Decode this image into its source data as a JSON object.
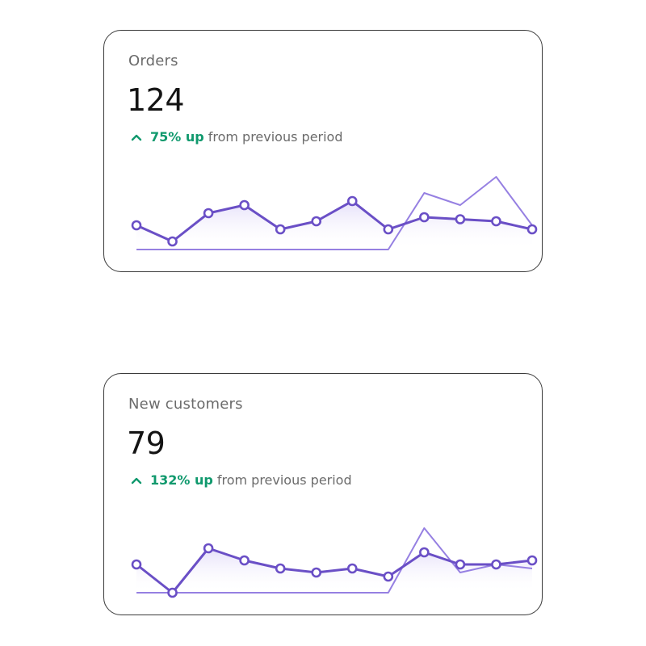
{
  "cards": [
    {
      "title": "Orders",
      "value": "124",
      "change_pct": "75% up",
      "change_text": "from previous period"
    },
    {
      "title": "New customers",
      "value": "79",
      "change_pct": "132% up",
      "change_text": "from previous period"
    }
  ],
  "colors": {
    "current_series": "#6a4fc6",
    "previous_series": "#9680e2",
    "positive": "#10996d"
  },
  "chart_data": [
    {
      "type": "line",
      "x": [
        1,
        2,
        3,
        4,
        5,
        6,
        7,
        8,
        9,
        10,
        11,
        12
      ],
      "series": [
        {
          "values": [
            6,
            2,
            9,
            11,
            5,
            7,
            12,
            5,
            8,
            7.5,
            7,
            5
          ]
        },
        {
          "values": [
            0,
            0,
            0,
            0,
            0,
            0,
            0,
            0,
            14,
            11,
            18,
            6
          ]
        }
      ],
      "ylim": [
        0,
        22
      ],
      "grid": false,
      "legend": "none"
    },
    {
      "type": "line",
      "x": [
        1,
        2,
        3,
        4,
        5,
        6,
        7,
        8,
        9,
        10,
        11,
        12
      ],
      "series": [
        {
          "values": [
            7,
            0,
            11,
            8,
            6,
            5,
            6,
            4,
            10,
            7,
            7,
            8
          ]
        },
        {
          "values": [
            0,
            0,
            0,
            0,
            0,
            0,
            0,
            0,
            16,
            5,
            7,
            6
          ]
        }
      ],
      "ylim": [
        0,
        22
      ],
      "grid": false,
      "legend": "none"
    }
  ]
}
